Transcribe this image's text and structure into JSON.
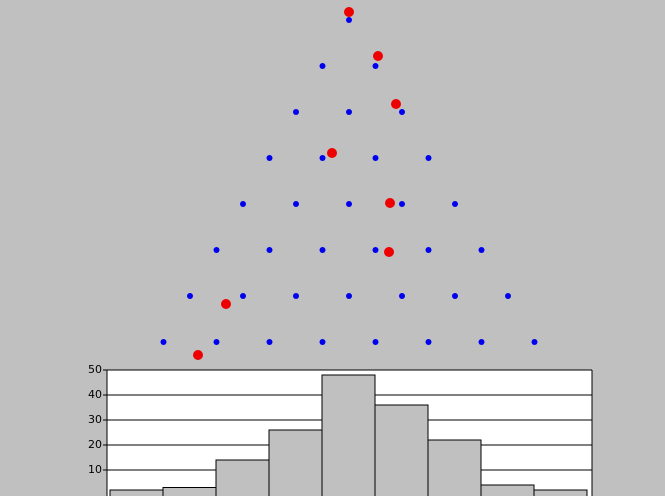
{
  "chart_data": {
    "type": "bar",
    "categories": [
      null,
      null,
      null,
      null,
      null,
      null,
      null,
      null,
      null
    ],
    "values": [
      2,
      3,
      14,
      26,
      48,
      36,
      22,
      4,
      2
    ],
    "color": "#c0c0c0",
    "ylim": [
      0,
      50
    ],
    "yticks": [
      10,
      20,
      30,
      40,
      50
    ],
    "grid": true
  }
}
